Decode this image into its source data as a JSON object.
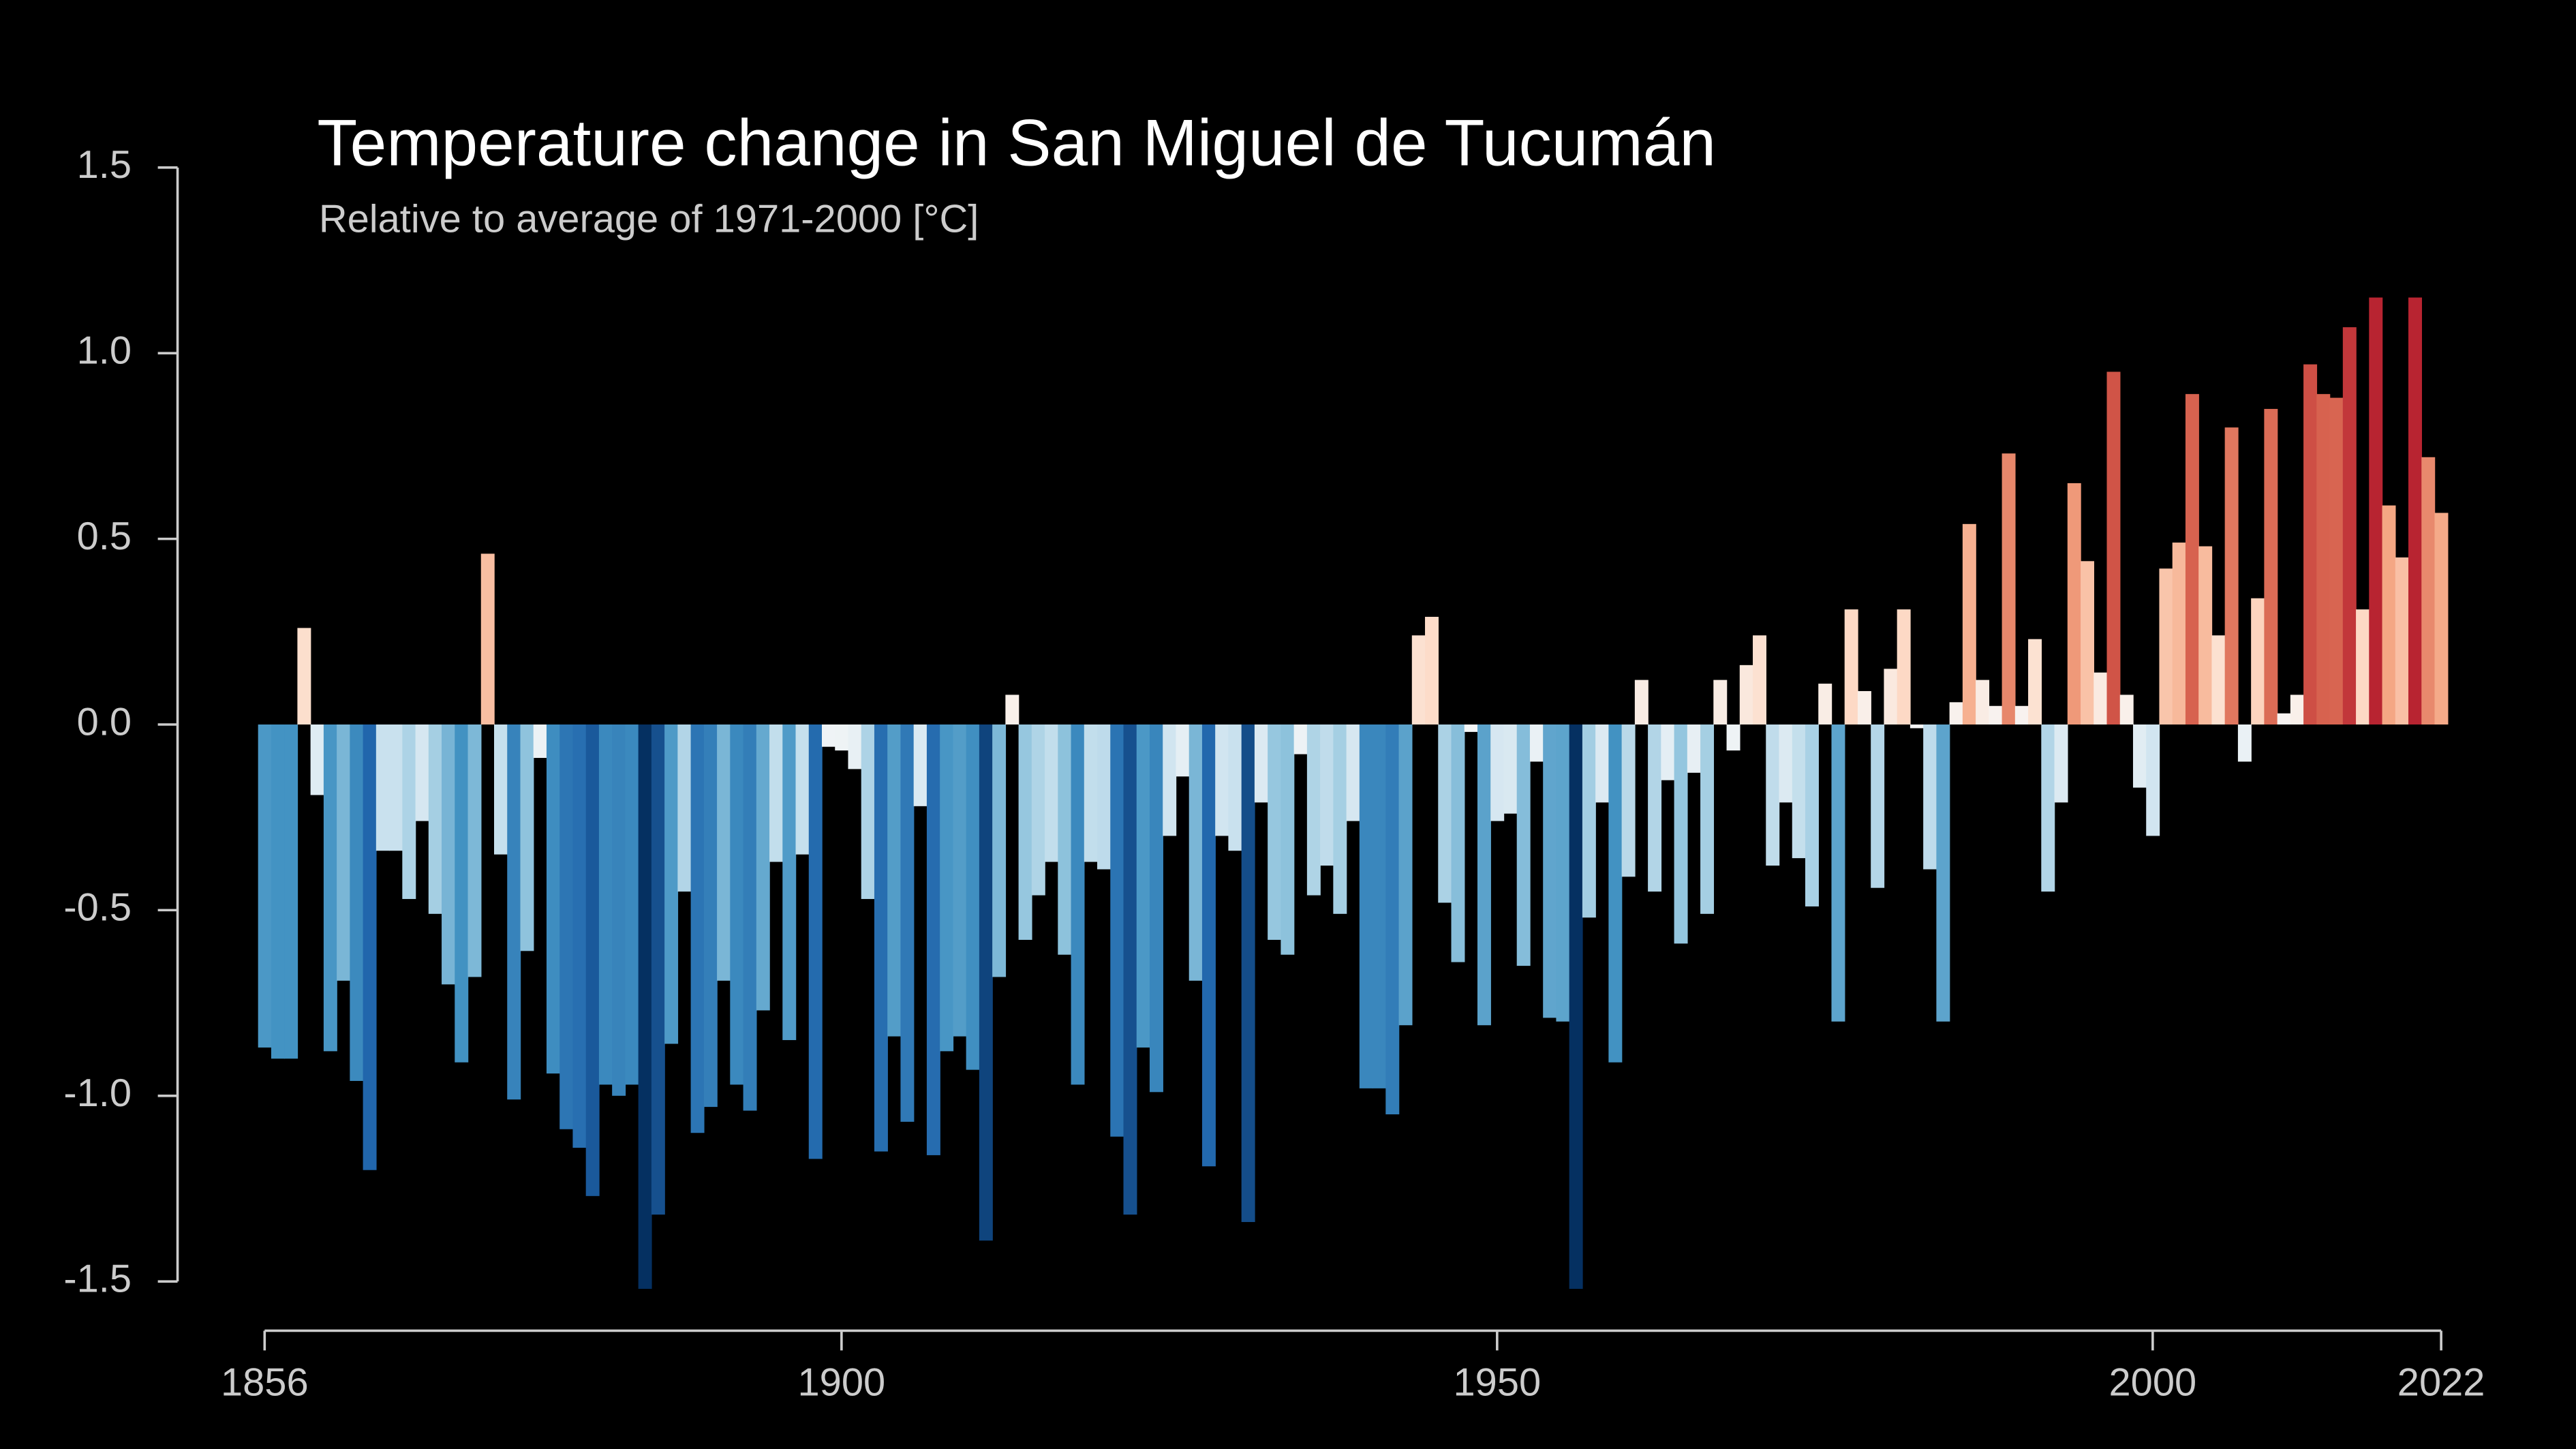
{
  "chart_data": {
    "type": "bar",
    "title": "Temperature change in San Miguel de Tucumán",
    "subtitle": "Relative to average of 1971-2000  [°C]",
    "colormap": "RdBu_r",
    "x": [
      1856,
      1857,
      1858,
      1859,
      1860,
      1861,
      1862,
      1863,
      1864,
      1865,
      1866,
      1867,
      1868,
      1869,
      1870,
      1871,
      1872,
      1873,
      1874,
      1875,
      1876,
      1877,
      1878,
      1879,
      1880,
      1881,
      1882,
      1883,
      1884,
      1885,
      1886,
      1887,
      1888,
      1889,
      1890,
      1891,
      1892,
      1893,
      1894,
      1895,
      1896,
      1897,
      1898,
      1899,
      1900,
      1901,
      1902,
      1903,
      1904,
      1905,
      1906,
      1907,
      1908,
      1909,
      1910,
      1911,
      1912,
      1913,
      1914,
      1915,
      1916,
      1917,
      1918,
      1919,
      1920,
      1921,
      1922,
      1923,
      1924,
      1925,
      1926,
      1927,
      1928,
      1929,
      1930,
      1931,
      1932,
      1933,
      1934,
      1935,
      1936,
      1937,
      1938,
      1939,
      1940,
      1941,
      1942,
      1943,
      1944,
      1945,
      1946,
      1947,
      1948,
      1949,
      1950,
      1951,
      1952,
      1953,
      1954,
      1955,
      1956,
      1957,
      1958,
      1959,
      1960,
      1961,
      1962,
      1963,
      1964,
      1965,
      1966,
      1967,
      1968,
      1969,
      1970,
      1971,
      1972,
      1973,
      1974,
      1975,
      1976,
      1977,
      1978,
      1979,
      1980,
      1981,
      1982,
      1983,
      1984,
      1985,
      1986,
      1987,
      1988,
      1989,
      1990,
      1991,
      1992,
      1993,
      1994,
      1995,
      1996,
      1997,
      1998,
      1999,
      2000,
      2001,
      2002,
      2003,
      2004,
      2005,
      2006,
      2007,
      2008,
      2009,
      2010,
      2011,
      2012,
      2013,
      2014,
      2015,
      2016,
      2017,
      2018,
      2019,
      2020,
      2021,
      2022
    ],
    "values": [
      -0.87,
      -0.9,
      -0.9,
      0.26,
      -0.19,
      -0.88,
      -0.69,
      -0.96,
      -1.2,
      -0.34,
      -0.34,
      -0.47,
      -0.26,
      -0.51,
      -0.7,
      -0.91,
      -0.68,
      0.46,
      -0.35,
      -1.01,
      -0.61,
      -0.09,
      -0.94,
      -1.09,
      -1.14,
      -1.27,
      -0.97,
      -1.0,
      -0.97,
      -1.52,
      -1.32,
      -0.86,
      -0.45,
      -1.1,
      -1.03,
      -0.69,
      -0.97,
      -1.04,
      -0.77,
      -0.37,
      -0.85,
      -0.35,
      -1.17,
      -0.06,
      -0.07,
      -0.12,
      -0.47,
      -1.15,
      -0.84,
      -1.07,
      -0.22,
      -1.16,
      -0.88,
      -0.84,
      -0.93,
      -1.39,
      -0.68,
      0.08,
      -0.58,
      -0.46,
      -0.37,
      -0.62,
      -0.97,
      -0.37,
      -0.39,
      -1.11,
      -1.32,
      -0.87,
      -0.99,
      -0.3,
      -0.14,
      -0.69,
      -1.19,
      -0.3,
      -0.34,
      -1.34,
      -0.21,
      -0.58,
      -0.62,
      -0.08,
      -0.46,
      -0.38,
      -0.51,
      -0.26,
      -0.98,
      -0.98,
      -1.05,
      -0.81,
      0.24,
      0.29,
      -0.48,
      -0.64,
      -0.02,
      -0.81,
      -0.26,
      -0.24,
      -0.65,
      -0.1,
      -0.79,
      -0.8,
      -1.52,
      -0.52,
      -0.21,
      -0.91,
      -0.41,
      0.12,
      -0.45,
      -0.15,
      -0.59,
      -0.13,
      -0.51,
      0.12,
      -0.07,
      0.16,
      0.24,
      -0.38,
      -0.21,
      -0.36,
      -0.49,
      0.11,
      -0.8,
      0.31,
      0.09,
      -0.44,
      0.15,
      0.31,
      -0.01,
      -0.39,
      -0.8,
      0.06,
      0.54,
      0.12,
      0.05,
      0.73,
      0.05,
      0.23,
      -0.45,
      -0.21,
      0.65,
      0.44,
      0.14,
      0.95,
      0.08,
      -0.17,
      -0.3,
      0.42,
      0.49,
      0.89,
      0.48,
      0.24,
      0.8,
      -0.1,
      0.34,
      0.85,
      0.03,
      0.08,
      0.97,
      0.89,
      0.88,
      1.07,
      0.31,
      1.15,
      0.59,
      0.45,
      1.15,
      0.72,
      0.57
    ],
    "xlim": [
      1856,
      2022
    ],
    "xticks": [
      1856,
      1900,
      1950,
      2000,
      2022
    ],
    "ylim": [
      -1.5,
      1.5
    ],
    "yticks": [
      -1.5,
      {
        "value": -1,
        "label": "-1.0"
      },
      -0.5,
      {
        "value": 0,
        "label": "0.0"
      },
      0.5,
      {
        "value": 1,
        "label": "1.0"
      },
      1.5
    ]
  }
}
